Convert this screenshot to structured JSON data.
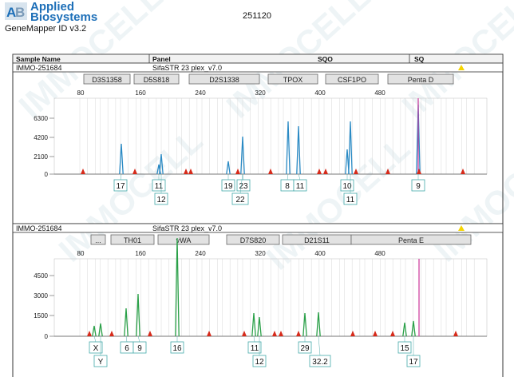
{
  "header": {
    "brand_line1": "Applied",
    "brand_line2": "Biosystems",
    "logo_letters": "AB",
    "app_name": "GeneMapper ID v3.2",
    "run_id": "251120",
    "watermark": "IMMOCELL"
  },
  "colors": {
    "blue_trace": "#2a8ac4",
    "green_trace": "#2aa048",
    "magenta_marker": "#cc3399",
    "peak_marker": "#d62a1a",
    "warning": "#f5d400",
    "brand": "#1d6fb8"
  },
  "panel1": {
    "col_sample_name": "Sample Name",
    "col_panel": "Panel",
    "col_sqo": "SQO",
    "col_sq": "SQ",
    "sample": "IMMO-251684",
    "panel_name": "SifaSTR 23 plex_v7.0",
    "markers": [
      "D3S1358",
      "D5S818",
      "D2S1338",
      "TPOX",
      "CSF1PO",
      "Penta D"
    ],
    "x_ticks": [
      "80",
      "160",
      "240",
      "320",
      "400",
      "480"
    ],
    "y_ticks": [
      "6300",
      "4200",
      "2100",
      "0"
    ],
    "allele_top": [
      "17",
      "11",
      "19",
      "23",
      "8",
      "11",
      "10",
      "9"
    ],
    "allele_bottom": [
      "12",
      "22",
      "11"
    ]
  },
  "panel2": {
    "sample": "IMMO-251684",
    "panel_name": "SifaSTR 23 plex_v7.0",
    "ellipsis": "...",
    "markers": [
      "TH01",
      "vWA",
      "D7S820",
      "D21S11",
      "Penta E"
    ],
    "x_ticks": [
      "80",
      "160",
      "240",
      "320",
      "400",
      "480"
    ],
    "y_ticks": [
      "4500",
      "3000",
      "1500",
      "0"
    ],
    "allele_top": [
      "X",
      "6",
      "9",
      "16",
      "11",
      "29",
      "15"
    ],
    "allele_bottom": [
      "Y",
      "12",
      "32.2",
      "17"
    ]
  }
}
